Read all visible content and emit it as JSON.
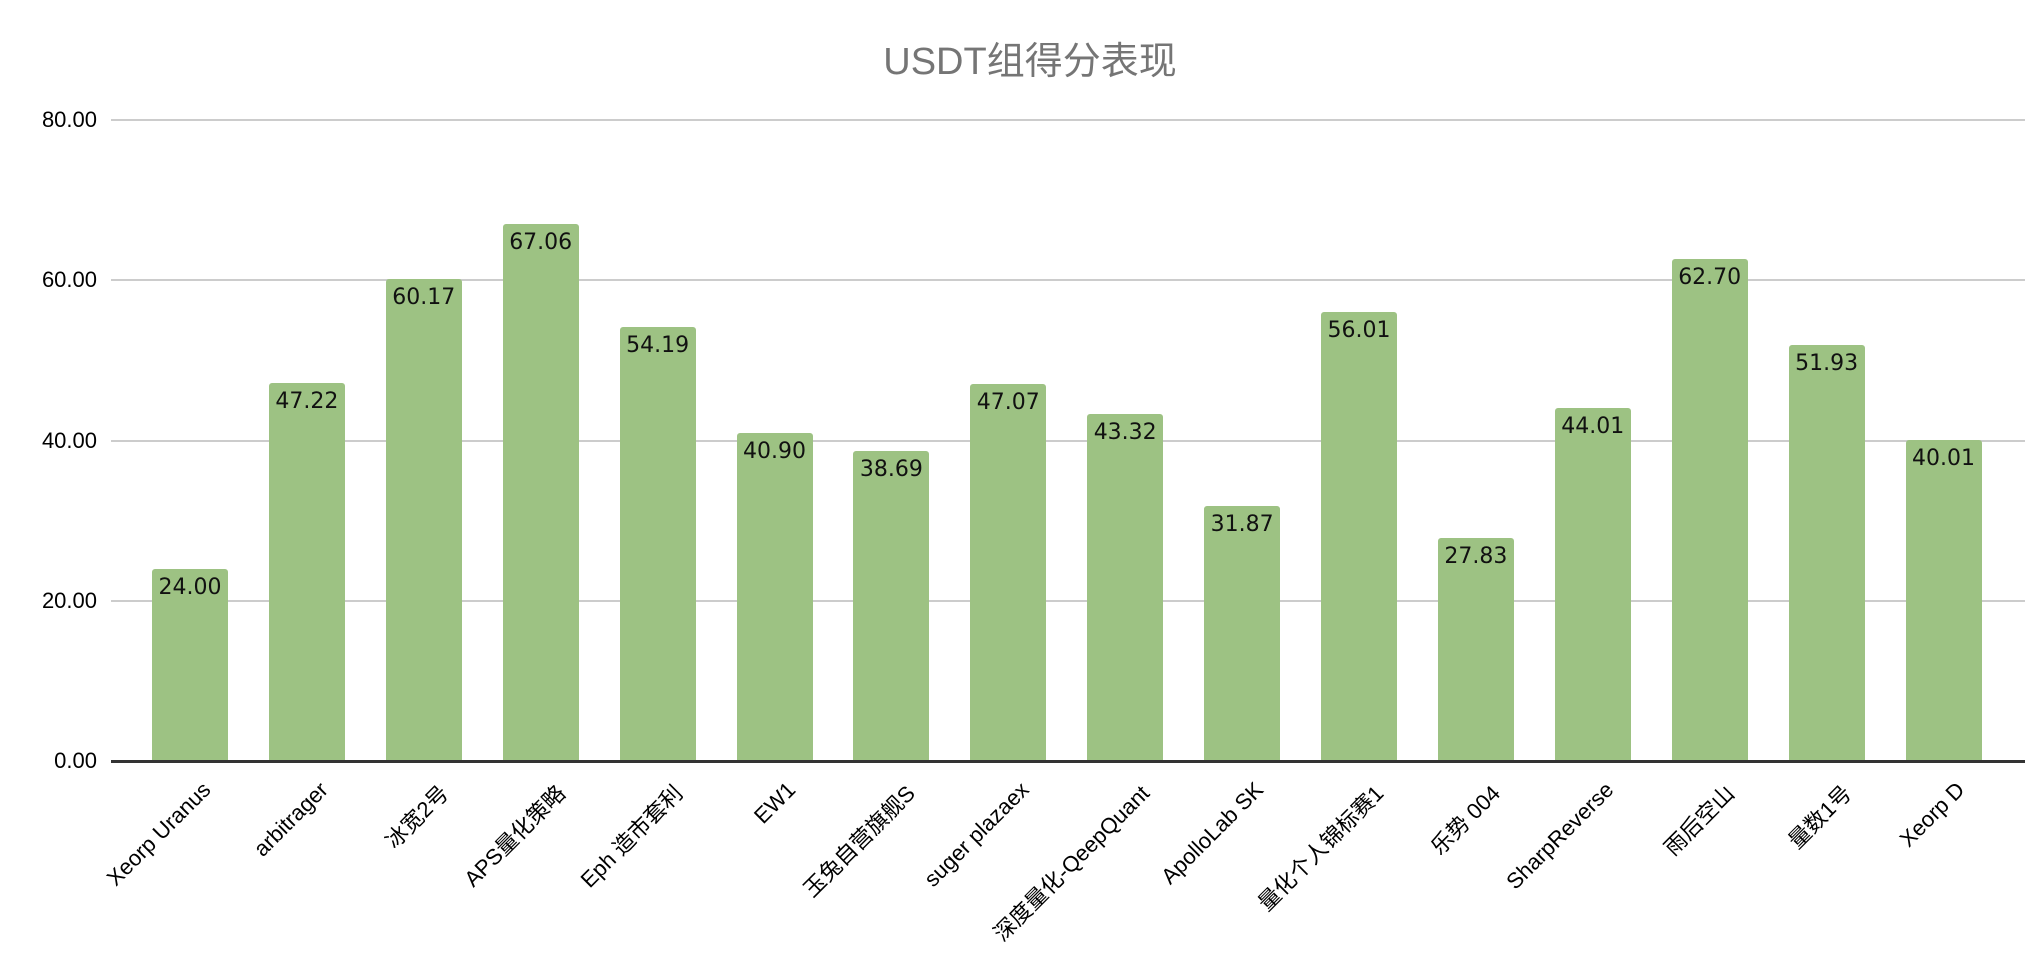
{
  "chart_data": {
    "type": "bar",
    "title": "USDT组得分表现",
    "xlabel": "",
    "ylabel": "",
    "ylim": [
      0,
      80
    ],
    "yticks": [
      "0.00",
      "20.00",
      "40.00",
      "60.00",
      "80.00"
    ],
    "grid": true,
    "legend": "none",
    "bar_color": "#9DC283",
    "categories": [
      "Xeorp Uranus",
      "arbitrager",
      "冰宽2号",
      "APS量化策略",
      "Eph 造市套利",
      "EW1",
      "玉兔自营旗舰S",
      "suger plazaex",
      "深度量化-QeepQuant",
      "ApolloLab SK",
      "量化个人锦标赛1",
      "乐势 004",
      "SharpReverse",
      "雨后空山",
      "量数1号",
      "Xeorp D"
    ],
    "values": [
      24.0,
      47.22,
      60.17,
      67.06,
      54.19,
      40.9,
      38.69,
      47.07,
      43.32,
      31.87,
      56.01,
      27.83,
      44.01,
      62.7,
      51.93,
      40.01
    ],
    "value_labels": [
      "24.00",
      "47.22",
      "60.17",
      "67.06",
      "54.19",
      "40.90",
      "38.69",
      "47.07",
      "43.32",
      "31.87",
      "56.01",
      "27.83",
      "44.01",
      "62.70",
      "51.93",
      "40.01"
    ]
  }
}
